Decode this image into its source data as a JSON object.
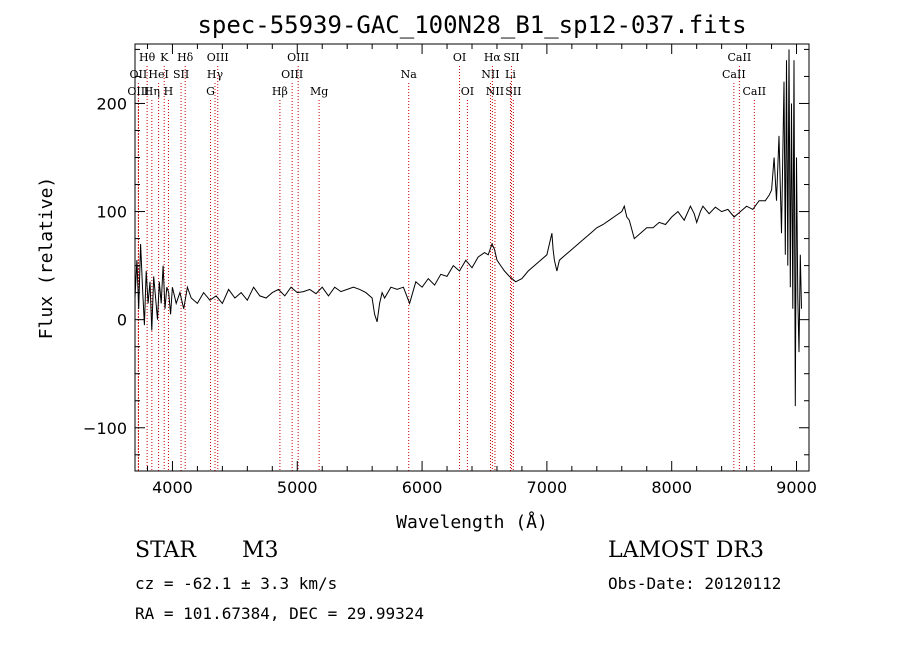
{
  "chart_data": {
    "type": "line",
    "title": "spec-55939-GAC_100N28_B1_sp12-037.fits",
    "xlabel": "Wavelength (Å)",
    "ylabel": "Flux (relative)",
    "xlim": [
      3700,
      9100
    ],
    "ylim": [
      -140,
      255
    ],
    "x_ticks": [
      4000,
      5000,
      6000,
      7000,
      8000,
      9000
    ],
    "y_ticks": [
      -100,
      0,
      100,
      200
    ],
    "grid": false,
    "line_color": "#000000",
    "marker_color": "#cc0000",
    "spectrum": {
      "name": "flux",
      "x": [
        3700,
        3715,
        3730,
        3745,
        3760,
        3775,
        3790,
        3805,
        3820,
        3835,
        3850,
        3865,
        3880,
        3895,
        3910,
        3925,
        3940,
        3955,
        3970,
        3985,
        4000,
        4030,
        4060,
        4090,
        4120,
        4150,
        4200,
        4250,
        4300,
        4350,
        4400,
        4450,
        4500,
        4550,
        4600,
        4650,
        4700,
        4750,
        4800,
        4850,
        4900,
        4950,
        5000,
        5050,
        5100,
        5150,
        5200,
        5250,
        5300,
        5350,
        5400,
        5450,
        5500,
        5550,
        5600,
        5620,
        5640,
        5660,
        5680,
        5700,
        5750,
        5800,
        5850,
        5900,
        5950,
        6000,
        6050,
        6100,
        6150,
        6200,
        6250,
        6300,
        6350,
        6400,
        6450,
        6500,
        6530,
        6560,
        6580,
        6600,
        6630,
        6660,
        6700,
        6750,
        6800,
        6850,
        6900,
        6950,
        7000,
        7040,
        7050,
        7060,
        7080,
        7100,
        7150,
        7200,
        7250,
        7300,
        7350,
        7400,
        7450,
        7500,
        7550,
        7600,
        7620,
        7640,
        7660,
        7700,
        7750,
        7800,
        7850,
        7900,
        7950,
        8000,
        8050,
        8100,
        8150,
        8180,
        8200,
        8230,
        8250,
        8300,
        8350,
        8400,
        8450,
        8500,
        8550,
        8600,
        8650,
        8700,
        8750,
        8780,
        8800,
        8820,
        8840,
        8860,
        8880,
        8900,
        8910,
        8920,
        8930,
        8940,
        8950,
        8960,
        8970,
        8980,
        8990,
        9000,
        9010,
        9020,
        9030,
        9040
      ],
      "values": [
        20,
        55,
        10,
        70,
        30,
        -5,
        45,
        15,
        35,
        -10,
        40,
        20,
        0,
        35,
        15,
        50,
        10,
        30,
        25,
        5,
        30,
        15,
        25,
        10,
        30,
        20,
        15,
        25,
        18,
        22,
        15,
        28,
        20,
        25,
        18,
        30,
        22,
        20,
        25,
        28,
        22,
        30,
        25,
        26,
        28,
        24,
        30,
        22,
        30,
        26,
        28,
        30,
        28,
        25,
        20,
        5,
        -2,
        15,
        25,
        20,
        30,
        28,
        30,
        15,
        35,
        30,
        38,
        32,
        42,
        40,
        50,
        45,
        55,
        48,
        58,
        62,
        60,
        70,
        65,
        55,
        50,
        45,
        40,
        35,
        38,
        45,
        50,
        55,
        60,
        80,
        65,
        55,
        45,
        55,
        60,
        65,
        70,
        75,
        80,
        85,
        88,
        92,
        96,
        100,
        105,
        95,
        92,
        75,
        80,
        85,
        85,
        90,
        88,
        95,
        100,
        92,
        105,
        98,
        90,
        100,
        105,
        98,
        104,
        100,
        102,
        95,
        100,
        105,
        102,
        110,
        110,
        115,
        120,
        150,
        110,
        170,
        80,
        220,
        60,
        240,
        50,
        250,
        30,
        200,
        10,
        240,
        -80,
        150,
        20,
        -30,
        60,
        10
      ]
    },
    "line_markers": [
      {
        "label": "Hθ",
        "x": 3797,
        "row": 0
      },
      {
        "label": "OII",
        "x": 3727,
        "row": 1
      },
      {
        "label": "OIII",
        "x": 3727,
        "row": 2
      },
      {
        "label": "HeI",
        "x": 3889,
        "row": 1
      },
      {
        "label": "Hη",
        "x": 3835,
        "row": 2
      },
      {
        "label": "K",
        "x": 3934,
        "row": 0
      },
      {
        "label": "H",
        "x": 3968,
        "row": 2
      },
      {
        "label": "SII",
        "x": 4069,
        "row": 1
      },
      {
        "label": "Hδ",
        "x": 4102,
        "row": 0
      },
      {
        "label": "OIII",
        "x": 4363,
        "row": 0
      },
      {
        "label": "Hγ",
        "x": 4341,
        "row": 1
      },
      {
        "label": "G",
        "x": 4305,
        "row": 2
      },
      {
        "label": "OIII",
        "x": 5007,
        "row": 0
      },
      {
        "label": "OIII",
        "x": 4959,
        "row": 1
      },
      {
        "label": "Hβ",
        "x": 4861,
        "row": 2
      },
      {
        "label": "Mg",
        "x": 5175,
        "row": 2
      },
      {
        "label": "Na",
        "x": 5893,
        "row": 1
      },
      {
        "label": "OI",
        "x": 6300,
        "row": 0
      },
      {
        "label": "OI",
        "x": 6363,
        "row": 2
      },
      {
        "label": "Hα",
        "x": 6563,
        "row": 0
      },
      {
        "label": "SII",
        "x": 6716,
        "row": 0
      },
      {
        "label": "NII",
        "x": 6548,
        "row": 1
      },
      {
        "label": "Li",
        "x": 6708,
        "row": 1
      },
      {
        "label": "NII",
        "x": 6584,
        "row": 2
      },
      {
        "label": "SII",
        "x": 6731,
        "row": 2
      },
      {
        "label": "CaII",
        "x": 8542,
        "row": 0
      },
      {
        "label": "CaII",
        "x": 8498,
        "row": 1
      },
      {
        "label": "CaII",
        "x": 8662,
        "row": 2
      }
    ]
  },
  "info": {
    "object_class": "STAR",
    "subclass": "M3",
    "survey": "LAMOST DR3",
    "cz": "cz = -62.1 ± 3.3 km/s",
    "obs_date": "Obs-Date: 20120112",
    "coords": "RA = 101.67384, DEC =  29.99324"
  }
}
